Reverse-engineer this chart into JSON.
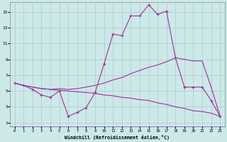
{
  "xlabel": "Windchill (Refroidissement éolien,°C)",
  "bg_color": "#cde8e8",
  "line_color": "#993399",
  "grid_color": "#aacccc",
  "xlim_min": -0.5,
  "xlim_max": 23.5,
  "ylim_min": 0.5,
  "ylim_max": 16.2,
  "xticks": [
    0,
    1,
    2,
    3,
    4,
    5,
    6,
    7,
    8,
    9,
    10,
    11,
    12,
    13,
    14,
    15,
    16,
    17,
    18,
    19,
    20,
    21,
    22,
    23
  ],
  "yticks": [
    1,
    3,
    5,
    7,
    9,
    11,
    13,
    15
  ],
  "line1_x": [
    0,
    1,
    2,
    3,
    4,
    5,
    6,
    7,
    8,
    9,
    10,
    11,
    12,
    13,
    14,
    15,
    16,
    17,
    18,
    19,
    20,
    21,
    22,
    23
  ],
  "line1_y": [
    6.0,
    5.7,
    5.2,
    4.5,
    4.2,
    5.0,
    1.8,
    2.3,
    2.9,
    4.8,
    8.4,
    12.2,
    12.0,
    14.5,
    14.5,
    15.9,
    14.7,
    15.1,
    9.2,
    5.5,
    5.5,
    5.5,
    3.8,
    1.8
  ],
  "line2_x": [
    0,
    1,
    2,
    3,
    4,
    5,
    6,
    7,
    8,
    9,
    10,
    11,
    12,
    13,
    14,
    15,
    16,
    17,
    18,
    19,
    20,
    21,
    22,
    23
  ],
  "line2_y": [
    6.0,
    5.7,
    5.5,
    5.3,
    5.2,
    5.1,
    5.0,
    4.9,
    4.8,
    4.7,
    4.5,
    4.4,
    4.2,
    4.1,
    3.9,
    3.8,
    3.5,
    3.3,
    3.0,
    2.8,
    2.5,
    2.4,
    2.2,
    1.8
  ],
  "line3_x": [
    0,
    1,
    2,
    3,
    4,
    5,
    6,
    7,
    8,
    9,
    10,
    11,
    12,
    13,
    14,
    15,
    16,
    17,
    18,
    19,
    20,
    21,
    22,
    23
  ],
  "line3_y": [
    6.0,
    5.7,
    5.5,
    5.3,
    5.2,
    5.3,
    5.2,
    5.3,
    5.5,
    5.7,
    6.0,
    6.4,
    6.7,
    7.2,
    7.6,
    8.0,
    8.3,
    8.7,
    9.2,
    9.0,
    8.8,
    8.8,
    5.5,
    1.8
  ]
}
